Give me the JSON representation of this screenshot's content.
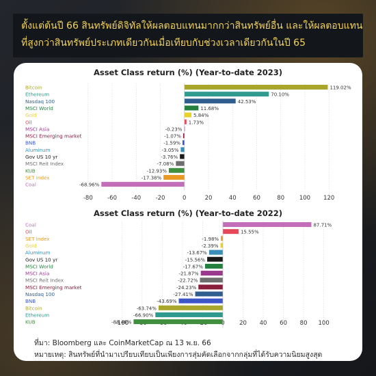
{
  "headline": {
    "line1": "ตั้งแต่ต้นปี 66 สินทรัพย์ดิจิทัลให้ผลตอบแทนมากกว่าสินทรัพย์อื่น และให้ผลตอบแทน",
    "line2": "ที่สูงกว่าสินทรัพย์ประเภทเดียวกันเมื่อเทียบกับช่วงเวลาเดียวกันในปี 65"
  },
  "footer": {
    "source": "ที่มา: Bloomberg และ CoinMarketCap ณ 13 พ.ย. 66",
    "note": "หมายเหตุ: สินทรัพย์ที่นำมาเปรียบเทียบเป็นเพียงการสุ่มคัดเลือกจากกลุ่มที่ได้รับความนิยมสูงสุด"
  },
  "chart_data": [
    {
      "type": "bar",
      "orientation": "horizontal",
      "title": "Asset Class return (%) (Year-to-date 2023)",
      "categories": [
        "Bitcoin",
        "Ethereum",
        "Nasdaq 100",
        "MSCI World",
        "Gold",
        "Oil",
        "MSCI Asia",
        "MSCI Emerging market",
        "BNB",
        "Aluminum",
        "Gov US 10 yr",
        "MSCI Reit Index",
        "KUB",
        "SET Index",
        "Coal"
      ],
      "values": [
        119.02,
        70.1,
        42.53,
        11.68,
        5.84,
        1.73,
        -0.23,
        -1.07,
        -1.59,
        -3.05,
        -3.76,
        -7.08,
        -12.93,
        -17.38,
        -68.96
      ],
      "data_labels": [
        "119.02%",
        "70.10%",
        "42.53%",
        "11.68%",
        "5.84%",
        "1.73%",
        "-0.23%",
        "-1.07%",
        "-1.59%",
        "-3.05%",
        "-3.76%",
        "-7.08%",
        "-12.93%",
        "-17.38%",
        "-68.96%"
      ],
      "colors": [
        "#a8a62b",
        "#2f9a8e",
        "#2f5e8e",
        "#25803f",
        "#ead12c",
        "#e6485a",
        "#9a3a8c",
        "#8a1f3c",
        "#3c56c8",
        "#3a8fb8",
        "#1a1a1a",
        "#6e6e6e",
        "#3f8f3f",
        "#e99a25",
        "#c26eb8"
      ],
      "xticks": [
        "-80",
        "-60",
        "-40",
        "-20",
        "0",
        "20",
        "40",
        "60",
        "80",
        "100",
        "120"
      ],
      "xlim": [
        -85,
        125
      ],
      "grid": true
    },
    {
      "type": "bar",
      "orientation": "horizontal",
      "title": "Asset Class return (%) (Year-to-date 2022)",
      "categories": [
        "Coal",
        "Oil",
        "SET Index",
        "Gold",
        "Aluminum",
        "Gov US 10 yr",
        "MSCI World",
        "MSCI Asia",
        "MSCI Reit Index",
        "MSCI Emerging market",
        "Nasdaq 100",
        "BNB",
        "Bitcoin",
        "Ethereum",
        "KUB"
      ],
      "values": [
        87.71,
        15.55,
        -1.98,
        -2.39,
        -13.67,
        -15.56,
        -17.67,
        -21.87,
        -22.72,
        -24.23,
        -27.41,
        -43.69,
        -63.74,
        -66.9,
        -88.48
      ],
      "data_labels": [
        "87.71%",
        "15.55%",
        "-1.98%",
        "-2.39%",
        "-13.67%",
        "-15.56%",
        "-17.67%",
        "-21.87%",
        "-22.72%",
        "-24.23%",
        "-27.41%",
        "-43.69%",
        "-63.74%",
        "-66.90%",
        "-88.48%"
      ],
      "colors": [
        "#c26eb8",
        "#e6485a",
        "#e99a25",
        "#ead12c",
        "#3a8fb8",
        "#1a1a1a",
        "#25803f",
        "#9a3a8c",
        "#6e6e6e",
        "#8a1f3c",
        "#2f5e8e",
        "#3c56c8",
        "#a8a62b",
        "#2f9a8e",
        "#3f8f3f"
      ],
      "xticks": [
        "-100",
        "-80",
        "-60",
        "-40",
        "-20",
        "0",
        "20",
        "40",
        "60",
        "80",
        "100"
      ],
      "xlim": [
        -105,
        105
      ],
      "grid": true
    }
  ]
}
